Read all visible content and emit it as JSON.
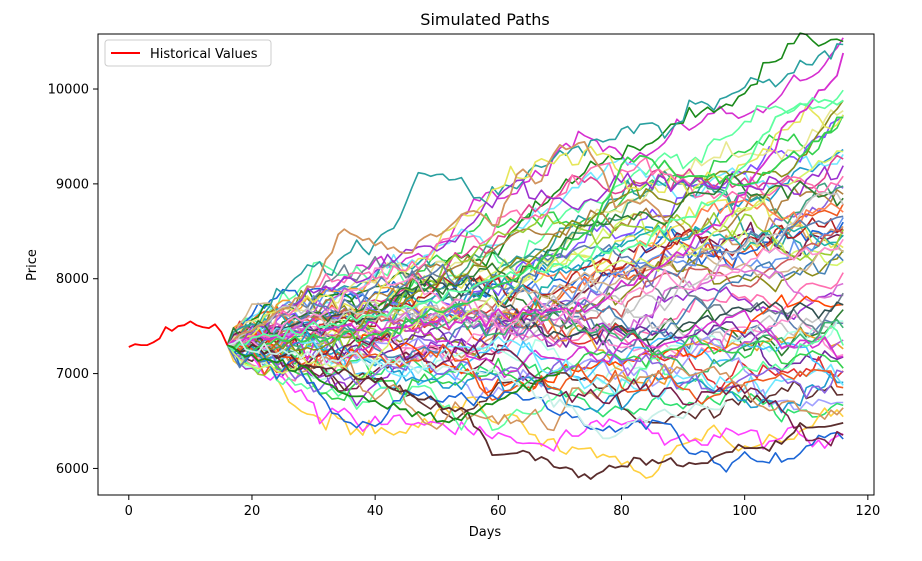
{
  "chart_data": {
    "type": "line",
    "title": "Simulated Paths",
    "xlabel": "Days",
    "ylabel": "Price",
    "xlim": [
      -5,
      121
    ],
    "ylim": [
      5720,
      10580
    ],
    "xticks": [
      0,
      20,
      40,
      60,
      80,
      100,
      120
    ],
    "yticks": [
      6000,
      7000,
      8000,
      9000,
      10000
    ],
    "grid": false,
    "legend": {
      "position": "top-left",
      "entries": [
        {
          "label": "Historical Values",
          "color": "#ff0000"
        }
      ]
    },
    "historical": {
      "name": "Historical Values",
      "color": "#ff0000",
      "x": [
        0,
        1,
        2,
        3,
        4,
        5,
        6,
        7,
        8,
        9,
        10,
        11,
        12,
        13,
        14,
        15,
        16
      ],
      "y": [
        7280,
        7310,
        7300,
        7300,
        7330,
        7370,
        7490,
        7450,
        7500,
        7510,
        7550,
        7510,
        7490,
        7480,
        7520,
        7440,
        7300
      ]
    },
    "simulation": {
      "start_day": 16,
      "end_day": 116,
      "start_value": 7300,
      "path_count": 70,
      "visible_end_values": [
        10380,
        9880,
        9700,
        9300,
        9150,
        8950,
        8900,
        8700,
        8600,
        8500,
        8450,
        8300,
        8200,
        8100,
        7980,
        7800,
        7700,
        7600,
        7500,
        7400,
        7300,
        7200,
        7100,
        7000,
        6950,
        6800,
        6700,
        6600,
        6500,
        6480
      ],
      "colors": [
        "#d62fd0",
        "#5fffa0",
        "#35d14f",
        "#1f9acf",
        "#6fe8ff",
        "#8a63e0",
        "#f05a1e",
        "#d2945e",
        "#1c66d6",
        "#7a1f4a",
        "#2aa0a0",
        "#8c8c1a",
        "#e6e65a",
        "#d4f56a",
        "#ff6fb0",
        "#9b30d0",
        "#2e7d32",
        "#5a7db0",
        "#c4c4c4",
        "#ff8fd0",
        "#b0ffe6",
        "#6f2aa0",
        "#e03030",
        "#f0a030",
        "#40c0ff",
        "#a0a0ff",
        "#30e070",
        "#603030",
        "#ffd040",
        "#ff40ff",
        "#1a8a1a",
        "#8050ff",
        "#e8e890",
        "#e04090",
        "#40a080",
        "#b08040",
        "#ff7f50",
        "#6495ed",
        "#b22222",
        "#20b2aa",
        "#9acd32",
        "#cd5c5c",
        "#4682b4",
        "#d2b48c",
        "#da70d6",
        "#708090",
        "#ff4500",
        "#2f4f4f",
        "#ba55d3",
        "#3cb371"
      ],
      "special_paths": [
        {
          "color": "#d2945e",
          "points": [
            [
              16,
              7300
            ],
            [
              30,
              7900
            ],
            [
              34,
              8500
            ],
            [
              45,
              8300
            ],
            [
              56,
              8700
            ],
            [
              60,
              8600
            ],
            [
              64,
              9200
            ],
            [
              66,
              9000
            ],
            [
              70,
              9400
            ],
            [
              74,
              9450
            ],
            [
              77,
              9100
            ],
            [
              79,
              8800
            ],
            [
              84,
              8800
            ],
            [
              88,
              8600
            ]
          ]
        },
        {
          "color": "#5a2d2d",
          "points": [
            [
              16,
              7300
            ],
            [
              25,
              7200
            ],
            [
              35,
              7000
            ],
            [
              45,
              6800
            ],
            [
              52,
              6650
            ],
            [
              55,
              6600
            ],
            [
              58,
              6300
            ],
            [
              60,
              6100
            ],
            [
              63,
              6200
            ],
            [
              66,
              6100
            ],
            [
              70,
              6000
            ],
            [
              76,
              5900
            ],
            [
              80,
              6050
            ],
            [
              86,
              6100
            ],
            [
              93,
              6050
            ],
            [
              100,
              6250
            ],
            [
              104,
              6200
            ],
            [
              109,
              6400
            ],
            [
              113,
              6450
            ],
            [
              116,
              6480
            ]
          ]
        },
        {
          "color": "#d62fd0",
          "points": [
            [
              16,
              7300
            ],
            [
              30,
              7500
            ],
            [
              45,
              7500
            ],
            [
              60,
              7600
            ],
            [
              75,
              7700
            ],
            [
              90,
              8300
            ],
            [
              98,
              8700
            ],
            [
              103,
              9200
            ],
            [
              108,
              9700
            ],
            [
              112,
              9950
            ],
            [
              115,
              10100
            ],
            [
              116,
              10380
            ]
          ]
        },
        {
          "color": "#5fffa0",
          "points": [
            [
              16,
              7300
            ],
            [
              40,
              7600
            ],
            [
              60,
              8000
            ],
            [
              80,
              8300
            ],
            [
              95,
              8800
            ],
            [
              100,
              9200
            ],
            [
              105,
              9700
            ],
            [
              110,
              9850
            ],
            [
              116,
              9880
            ]
          ]
        },
        {
          "color": "#35d14f",
          "points": [
            [
              16,
              7300
            ],
            [
              40,
              7400
            ],
            [
              60,
              7900
            ],
            [
              75,
              8500
            ],
            [
              80,
              9200
            ],
            [
              84,
              9300
            ],
            [
              90,
              9100
            ],
            [
              100,
              9000
            ],
            [
              108,
              9300
            ],
            [
              116,
              9700
            ]
          ]
        },
        {
          "color": "#c8f0e8",
          "points": [
            [
              16,
              7300
            ],
            [
              40,
              7100
            ],
            [
              60,
              7000
            ],
            [
              70,
              6700
            ],
            [
              75,
              6450
            ],
            [
              78,
              6300
            ],
            [
              83,
              6550
            ],
            [
              90,
              6600
            ],
            [
              97,
              6700
            ]
          ]
        },
        {
          "color": "#1a8a1a",
          "points": [
            [
              16,
              7300
            ],
            [
              25,
              7100
            ],
            [
              35,
              6800
            ],
            [
              45,
              6600
            ],
            [
              52,
              6500
            ],
            [
              56,
              6600
            ],
            [
              62,
              6800
            ],
            [
              70,
              7000
            ]
          ]
        }
      ]
    }
  }
}
